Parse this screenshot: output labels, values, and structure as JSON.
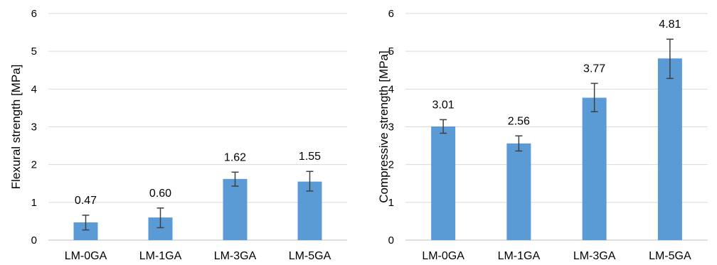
{
  "chart_data": [
    {
      "type": "bar",
      "title": "",
      "xlabel": "",
      "ylabel": "Flexural strength [MPa]",
      "ylim": [
        0,
        6
      ],
      "yticks": [
        0,
        1,
        2,
        3,
        4,
        5,
        6
      ],
      "grid": true,
      "legend": "none",
      "categories": [
        "LM-0GA",
        "LM-1GA",
        "LM-3GA",
        "LM-5GA"
      ],
      "values": [
        0.47,
        0.6,
        1.62,
        1.55
      ],
      "value_labels": [
        "0.47",
        "0.60",
        "1.62",
        "1.55"
      ],
      "error_low": [
        0.27,
        0.33,
        1.43,
        1.3
      ],
      "error_high": [
        0.66,
        0.85,
        1.8,
        1.82
      ],
      "bar_color": "#5b9bd5"
    },
    {
      "type": "bar",
      "title": "",
      "xlabel": "",
      "ylabel": "Compressive strength [MPa]",
      "ylim": [
        0,
        6
      ],
      "yticks": [
        0,
        1,
        2,
        3,
        4,
        5,
        6
      ],
      "grid": true,
      "legend": "none",
      "categories": [
        "LM-0GA",
        "LM-1GA",
        "LM-3GA",
        "LM-5GA"
      ],
      "values": [
        3.01,
        2.56,
        3.77,
        4.81
      ],
      "value_labels": [
        "3.01",
        "2.56",
        "3.77",
        "4.81"
      ],
      "error_low": [
        2.83,
        2.36,
        3.4,
        4.28
      ],
      "error_high": [
        3.19,
        2.76,
        4.15,
        5.32
      ],
      "bar_color": "#5b9bd5"
    }
  ]
}
